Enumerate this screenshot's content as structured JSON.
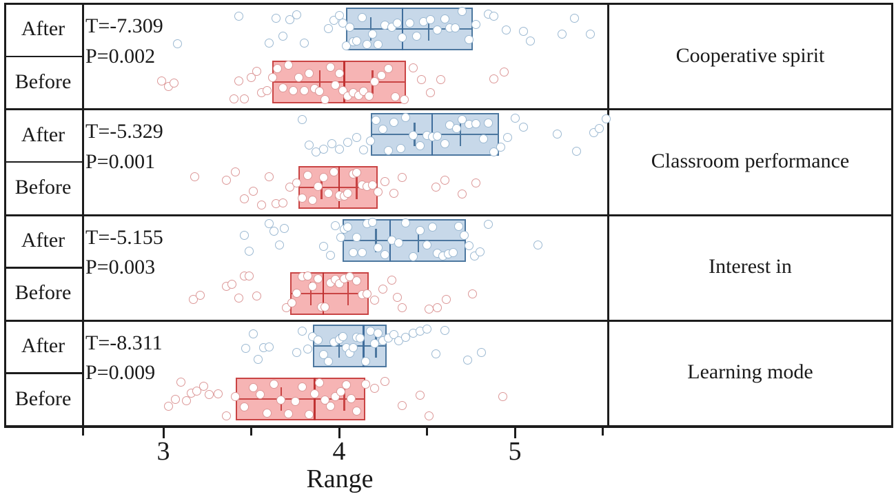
{
  "chart_data": {
    "type": "box",
    "title": "",
    "xlabel": "Range",
    "x_axis": {
      "min": 2.54,
      "max": 5.53,
      "major_ticks": [
        3,
        4,
        5
      ],
      "major_tick_labels": [
        "3",
        "4",
        "5"
      ],
      "minor_ticks": [
        2.5,
        3.5,
        4.5,
        5.5
      ],
      "grid": false
    },
    "row_labels": [
      "After",
      "Before"
    ],
    "legend_position": "none",
    "panels": [
      {
        "label": "Cooperative spirit",
        "t_stat": "T=-7.309",
        "p_value": "P=0.002",
        "after": {
          "box": {
            "q1": 4.04,
            "median": 4.36,
            "q3": 4.76,
            "caps": [
              4.18,
              4.51
            ]
          },
          "points": [
            3.08,
            3.43,
            3.6,
            3.64,
            3.68,
            3.72,
            3.76,
            3.8,
            3.94,
            3.97,
            4.0,
            4.02,
            4.04,
            4.06,
            4.08,
            4.1,
            4.13,
            4.16,
            4.19,
            4.22,
            4.26,
            4.3,
            4.33,
            4.36,
            4.4,
            4.44,
            4.48,
            4.52,
            4.56,
            4.6,
            4.63,
            4.66,
            4.7,
            4.74,
            4.78,
            4.85,
            4.88,
            4.95,
            5.05,
            5.09,
            5.27,
            5.34,
            5.43
          ]
        },
        "before": {
          "box": {
            "q1": 3.62,
            "median": 4.03,
            "q3": 4.38,
            "caps": [
              3.89,
              4.19
            ]
          },
          "points": [
            2.99,
            3.03,
            3.06,
            3.4,
            3.43,
            3.46,
            3.5,
            3.53,
            3.56,
            3.59,
            3.62,
            3.65,
            3.68,
            3.71,
            3.74,
            3.77,
            3.8,
            3.83,
            3.86,
            3.89,
            3.92,
            3.95,
            3.98,
            4.0,
            4.02,
            4.05,
            4.08,
            4.11,
            4.14,
            4.17,
            4.2,
            4.24,
            4.28,
            4.32,
            4.37,
            4.42,
            4.47,
            4.52,
            4.58,
            4.88,
            4.94
          ]
        }
      },
      {
        "label": "Classroom performance",
        "t_stat": "T=-5.329",
        "p_value": "P=0.001",
        "after": {
          "box": {
            "q1": 4.18,
            "median": 4.53,
            "q3": 4.91,
            "caps": [
              4.43,
              4.69
            ]
          },
          "points": [
            3.79,
            3.83,
            3.87,
            3.91,
            3.96,
            4.0,
            4.05,
            4.1,
            4.14,
            4.18,
            4.21,
            4.25,
            4.28,
            4.31,
            4.35,
            4.38,
            4.42,
            4.46,
            4.5,
            4.53,
            4.56,
            4.6,
            4.63,
            4.67,
            4.7,
            4.74,
            4.78,
            4.82,
            4.85,
            4.88,
            4.92,
            4.96,
            5.0,
            5.05,
            5.24,
            5.35,
            5.45,
            5.48,
            5.52
          ]
        },
        "before": {
          "box": {
            "q1": 3.77,
            "median": 4.0,
            "q3": 4.22,
            "caps": [
              3.9,
              4.1
            ]
          },
          "points": [
            3.18,
            3.36,
            3.41,
            3.46,
            3.51,
            3.56,
            3.6,
            3.64,
            3.68,
            3.72,
            3.76,
            3.79,
            3.82,
            3.85,
            3.88,
            3.91,
            3.94,
            3.97,
            4.0,
            4.0,
            4.03,
            4.05,
            4.08,
            4.1,
            4.13,
            4.16,
            4.19,
            4.22,
            4.26,
            4.31,
            4.36,
            4.55,
            4.6,
            4.7,
            4.78
          ]
        }
      },
      {
        "label": "Interest in",
        "t_stat": "T=-5.155",
        "p_value": "P=0.003",
        "after": {
          "box": {
            "q1": 4.02,
            "median": 4.29,
            "q3": 4.72,
            "caps": [
              4.21,
              4.45
            ]
          },
          "points": [
            3.46,
            3.49,
            3.6,
            3.63,
            3.66,
            3.69,
            3.91,
            3.95,
            3.98,
            4.01,
            4.03,
            4.05,
            4.08,
            4.1,
            4.13,
            4.16,
            4.19,
            4.22,
            4.26,
            4.3,
            4.34,
            4.38,
            4.42,
            4.46,
            4.5,
            4.53,
            4.56,
            4.59,
            4.62,
            4.65,
            4.68,
            4.71,
            4.74,
            4.77,
            4.8,
            4.85,
            5.13
          ]
        },
        "before": {
          "box": {
            "q1": 3.72,
            "median": 3.91,
            "q3": 4.17,
            "caps": [
              3.84,
              4.05
            ]
          },
          "points": [
            3.17,
            3.21,
            3.36,
            3.39,
            3.43,
            3.46,
            3.49,
            3.53,
            3.7,
            3.73,
            3.76,
            3.79,
            3.82,
            3.85,
            3.88,
            3.9,
            3.92,
            3.95,
            3.98,
            4.0,
            4.03,
            4.06,
            4.1,
            4.13,
            4.16,
            4.2,
            4.25,
            4.3,
            4.33,
            4.36,
            4.51,
            4.56,
            4.61,
            4.76
          ]
        }
      },
      {
        "label": "Learning mode",
        "t_stat": "T=-8.311",
        "p_value": "P=0.009",
        "after": {
          "box": {
            "q1": 3.85,
            "median": 4.14,
            "q3": 4.27,
            "caps": [
              4.0,
              4.21
            ]
          },
          "points": [
            3.47,
            3.51,
            3.54,
            3.57,
            3.6,
            3.76,
            3.79,
            3.82,
            3.85,
            3.88,
            3.91,
            3.94,
            3.97,
            4.0,
            4.02,
            4.04,
            4.06,
            4.08,
            4.1,
            4.12,
            4.15,
            4.18,
            4.2,
            4.22,
            4.25,
            4.28,
            4.31,
            4.34,
            4.38,
            4.42,
            4.46,
            4.5,
            4.55,
            4.6,
            4.73,
            4.81
          ]
        },
        "before": {
          "box": {
            "q1": 3.41,
            "median": 3.86,
            "q3": 4.15,
            "caps": [
              3.67,
              4.03
            ]
          },
          "points": [
            3.03,
            3.07,
            3.1,
            3.13,
            3.16,
            3.19,
            3.23,
            3.26,
            3.31,
            3.36,
            3.41,
            3.46,
            3.51,
            3.55,
            3.59,
            3.63,
            3.67,
            3.71,
            3.75,
            3.79,
            3.83,
            3.86,
            3.89,
            3.92,
            3.95,
            3.98,
            4.01,
            4.04,
            4.07,
            4.1,
            4.15,
            4.2,
            4.26,
            4.36,
            4.46,
            4.51,
            4.93
          ]
        }
      }
    ],
    "colors": {
      "after": {
        "box_fill": "#c7d8e9",
        "box_border": "#4c779f",
        "median": "#3f6d9c",
        "point_stroke": "#9cb9d2"
      },
      "before": {
        "box_fill": "#f6b4b4",
        "box_border": "#c94444",
        "median": "#c03232",
        "point_stroke": "#dc9898"
      },
      "frame": "#1c1c1c",
      "text": "#1a1a1a"
    }
  }
}
